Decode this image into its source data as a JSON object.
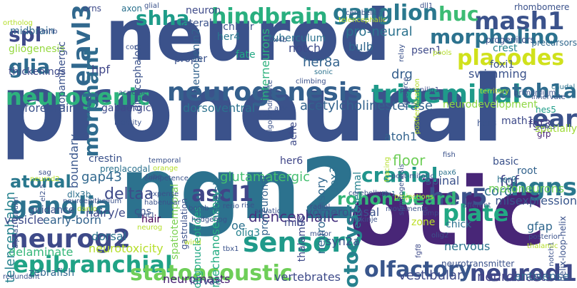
{
  "words": [
    {
      "text": "proneural",
      "color": "#3b528b"
    },
    {
      "text": "neurod",
      "color": "#3b528b"
    },
    {
      "text": "otic",
      "color": "#482677"
    },
    {
      "text": "ngn2",
      "color": "#2c728e"
    },
    {
      "text": "neurogenesis",
      "color": "#35608d"
    },
    {
      "text": "sensory",
      "color": "#1f9a8a"
    },
    {
      "text": "mash1",
      "color": "#3b528b"
    },
    {
      "text": "trigeminal",
      "color": "#1f9a8a"
    },
    {
      "text": "morpholino",
      "color": "#2c728e"
    },
    {
      "text": "epibranchial",
      "color": "#20a386"
    },
    {
      "text": "neurog2",
      "color": "#3e4a89"
    },
    {
      "text": "olfactory",
      "color": "#39568c"
    },
    {
      "text": "ganglia",
      "color": "#2c728e"
    },
    {
      "text": "placodes",
      "color": "#d0e11c"
    },
    {
      "text": "hindbrain",
      "color": "#29af7f"
    },
    {
      "text": "neurogenic",
      "color": "#2db27d"
    },
    {
      "text": "statoacoustic",
      "color": "#6ece58"
    },
    {
      "text": "elavl3",
      "color": "#31688e"
    },
    {
      "text": "her5",
      "color": "#3b528b"
    },
    {
      "text": "neurod1",
      "color": "#3e4a89"
    },
    {
      "text": "ganglion",
      "color": "#2a788e"
    },
    {
      "text": "spl",
      "color": "#3e4a89"
    },
    {
      "text": "ascl1",
      "color": "#404688"
    },
    {
      "text": "plate",
      "color": "#22a884"
    },
    {
      "text": "ngns",
      "color": "#2a788e"
    },
    {
      "text": "shha",
      "color": "#1e9c89"
    },
    {
      "text": "ear",
      "color": "#3b528b"
    },
    {
      "text": "cranial",
      "color": "#1f948c"
    },
    {
      "text": "otocyst",
      "color": "#26828e"
    },
    {
      "text": "morphant",
      "color": "#2f6c8e"
    },
    {
      "text": "glia",
      "color": "#2f6c8e"
    },
    {
      "text": "atoh1a",
      "color": "#2f6c8e"
    },
    {
      "text": "huc",
      "color": "#3dbc74"
    },
    {
      "text": "atonal",
      "color": "#2a788e"
    },
    {
      "text": "rohon-beard",
      "color": "#34b679"
    },
    {
      "text": "diencephalic",
      "color": "#46327e"
    },
    {
      "text": "deltaa",
      "color": "#3e4a89"
    },
    {
      "text": "drg",
      "color": "#355f8d"
    },
    {
      "text": "telencephalon",
      "color": "#26828e"
    },
    {
      "text": "gap43",
      "color": "#31688e"
    },
    {
      "text": "glutamatergic",
      "color": "#44bf70"
    },
    {
      "text": "acetylcholinesterase",
      "color": "#33638d"
    },
    {
      "text": "hair",
      "color": "#440154"
    },
    {
      "text": "neuromasts",
      "color": "#482173"
    },
    {
      "text": "dorsal",
      "color": "#2c728e"
    },
    {
      "text": "neurotoxicity",
      "color": "#b5de2b"
    },
    {
      "text": "mechanosensory",
      "color": "#25ac82"
    },
    {
      "text": "vestibular",
      "color": "#3e4a89"
    },
    {
      "text": "neuroblasts",
      "color": "#424086"
    },
    {
      "text": "zebrafish",
      "color": "#31688e"
    },
    {
      "text": "fgf",
      "color": "#404688"
    },
    {
      "text": "fgf3",
      "color": "#443a83"
    },
    {
      "text": "hes5",
      "color": "#1f9e89"
    },
    {
      "text": "her4",
      "color": "#2a788e"
    },
    {
      "text": "notch",
      "color": "#3e4a89"
    },
    {
      "text": "her8a",
      "color": "#33638d"
    },
    {
      "text": "bulb",
      "color": "#31688e"
    },
    {
      "text": "crest",
      "color": "#25838e"
    },
    {
      "text": "foxi1",
      "color": "#3b528b"
    },
    {
      "text": "forebrain",
      "color": "#3b528b"
    },
    {
      "text": "dorsoventral",
      "color": "#2c728e"
    },
    {
      "text": "neurodevelopment",
      "color": "#8fd744"
    },
    {
      "text": "math1",
      "color": "#3e4a89"
    },
    {
      "text": "atoh1",
      "color": "#33638d"
    },
    {
      "text": "her6",
      "color": "#404688"
    },
    {
      "text": "sox3",
      "color": "#2d708e"
    },
    {
      "text": "spinal",
      "color": "#3b528b"
    },
    {
      "text": "cord",
      "color": "#2d708e"
    },
    {
      "text": "floor",
      "color": "#6ece58"
    },
    {
      "text": "motoneurons",
      "color": "#6ccd5a"
    },
    {
      "text": "misexpression",
      "color": "#39568c"
    },
    {
      "text": "gfap",
      "color": "#31688e"
    },
    {
      "text": "root",
      "color": "#33638d"
    },
    {
      "text": "gfp",
      "color": "#482475"
    },
    {
      "text": "spatially",
      "color": "#a0da39"
    },
    {
      "text": "nervous",
      "color": "#2c728e"
    },
    {
      "text": "antisense",
      "color": "#31688e"
    },
    {
      "text": "vertebrates",
      "color": "#3e4a89"
    },
    {
      "text": "larvae",
      "color": "#3b528b"
    },
    {
      "text": "delaminate",
      "color": "#35b779"
    },
    {
      "text": "vesicle",
      "color": "#3e4a89"
    },
    {
      "text": "early-born",
      "color": "#33638d"
    },
    {
      "text": "hairy/e",
      "color": "#3e4a89"
    },
    {
      "text": "guidance",
      "color": "#3b528b"
    },
    {
      "text": "dlx3b",
      "color": "#2d708e"
    },
    {
      "text": "crestin",
      "color": "#3b528b"
    },
    {
      "text": "boundary",
      "color": "#39568c"
    },
    {
      "text": "gabaergic",
      "color": "#3e4a89"
    },
    {
      "text": "hpf",
      "color": "#404688"
    },
    {
      "text": "midbrain",
      "color": "#31688e"
    },
    {
      "text": "gliogenesis",
      "color": "#95d840"
    },
    {
      "text": "thickenings",
      "color": "#3e4a89"
    },
    {
      "text": "dopaminergic",
      "color": "#3b528b"
    },
    {
      "text": "diencephalon",
      "color": "#3b528b"
    },
    {
      "text": "neurogenin2",
      "color": "#33638d"
    },
    {
      "text": "interneurons",
      "color": "#2db27d"
    },
    {
      "text": "cochlear",
      "color": "#3b528b"
    },
    {
      "text": "tuberculum",
      "color": "#2c728e"
    },
    {
      "text": "pro-neural",
      "color": "#2c728e"
    },
    {
      "text": "lateral",
      "color": "#3b528b"
    },
    {
      "text": "axon",
      "color": "#2c728e"
    },
    {
      "text": "neuron",
      "color": "#3e4a89"
    },
    {
      "text": "proper",
      "color": "#3b528b"
    },
    {
      "text": "fate",
      "color": "#22a884"
    },
    {
      "text": "psen1",
      "color": "#3e4a89"
    },
    {
      "text": "swimming",
      "color": "#3b528b"
    },
    {
      "text": "olig3",
      "color": "#26828e"
    },
    {
      "text": "syn2a",
      "color": "#3b528b"
    },
    {
      "text": "oe",
      "color": "#2c728e"
    },
    {
      "text": "mib",
      "color": "#3e4a89"
    },
    {
      "text": "vomeronasal",
      "color": "#3b528b"
    },
    {
      "text": "cns",
      "color": "#3b528b"
    },
    {
      "text": "ventral",
      "color": "#2c728e"
    },
    {
      "text": "neurosensory",
      "color": "#31688e"
    },
    {
      "text": "proneuronal",
      "color": "#33638d"
    },
    {
      "text": "thalamus",
      "color": "#3e4a89"
    },
    {
      "text": "ectodermal",
      "color": "#26828e"
    },
    {
      "text": "ache",
      "color": "#3e4a89"
    },
    {
      "text": "her3",
      "color": "#3b528b"
    },
    {
      "text": "her9",
      "color": "#2c728e"
    },
    {
      "text": "basic",
      "color": "#3b528b"
    },
    {
      "text": "zone",
      "color": "#bddf26"
    },
    {
      "text": "chick",
      "color": "#2c728e"
    },
    {
      "text": "progenitors",
      "color": "#3b528b"
    },
    {
      "text": "precursors",
      "color": "#31688e"
    },
    {
      "text": "rhombomere",
      "color": "#3b528b"
    },
    {
      "text": "helix-loop-helix",
      "color": "#3b528b"
    },
    {
      "text": "neurotransmitter",
      "color": "#3b528b"
    },
    {
      "text": "spatiotemporal",
      "color": "#7ad151"
    },
    {
      "text": "oligonucleotides",
      "color": "#22a884"
    },
    {
      "text": "gastrulation",
      "color": "#3b528b"
    },
    {
      "text": "preplacodal",
      "color": "#2c728e"
    },
    {
      "text": "orns",
      "color": "#3e4a89"
    },
    {
      "text": "competence",
      "color": "#3b528b"
    },
    {
      "text": "corti",
      "color": "#3b528b"
    },
    {
      "text": "climbing",
      "color": "#3b528b"
    },
    {
      "text": "sonic",
      "color": "#2c728e"
    },
    {
      "text": "presenilin1",
      "color": "#3e4a89"
    },
    {
      "text": "caudal",
      "color": "#2c728e"
    },
    {
      "text": "primordium",
      "color": "#3b528b"
    },
    {
      "text": "fish",
      "color": "#3b528b"
    },
    {
      "text": "pax6",
      "color": "#2c728e"
    },
    {
      "text": "purkinje",
      "color": "#3b528b"
    },
    {
      "text": "radial",
      "color": "#3e4a89"
    },
    {
      "text": "aquatic",
      "color": "#3b528b"
    },
    {
      "text": "motor",
      "color": "#3b528b"
    },
    {
      "text": "cerebellum",
      "color": "#3b528b"
    },
    {
      "text": "six1",
      "color": "#2c728e"
    },
    {
      "text": "bmp",
      "color": "#3e4a89"
    },
    {
      "text": "afferent",
      "color": "#3b528b"
    },
    {
      "text": "movements",
      "color": "#3b528b"
    },
    {
      "text": "olig2",
      "color": "#3b528b"
    },
    {
      "text": "fgf8",
      "color": "#3e4a89"
    },
    {
      "text": "notch1",
      "color": "#3b528b"
    },
    {
      "text": "posterior",
      "color": "#3b528b"
    },
    {
      "text": "thalamic",
      "color": "#b5de2b"
    },
    {
      "text": "innervate",
      "color": "#3b528b"
    },
    {
      "text": "territory",
      "color": "#b5de2b"
    },
    {
      "text": "post-mitotic",
      "color": "#3b528b"
    },
    {
      "text": "projections",
      "color": "#b5de2b"
    },
    {
      "text": "somitogenesis",
      "color": "#3b528b"
    },
    {
      "text": "tracing",
      "color": "#b5de2b"
    },
    {
      "text": "cerebellar",
      "color": "#3b528b"
    },
    {
      "text": "glial",
      "color": "#3b528b"
    },
    {
      "text": "dll1",
      "color": "#3b528b"
    },
    {
      "text": "telencephalic",
      "color": "#b5de2b"
    },
    {
      "text": "dlx4b",
      "color": "#3b528b"
    },
    {
      "text": "relay",
      "color": "#3b528b"
    },
    {
      "text": "postfertilization",
      "color": "#b5de2b"
    },
    {
      "text": "resource",
      "color": "#3b528b"
    },
    {
      "text": "pools",
      "color": "#b5de2b"
    },
    {
      "text": "dlx3",
      "color": "#3b528b"
    },
    {
      "text": "ortholog",
      "color": "#b5de2b"
    },
    {
      "text": "mhb",
      "color": "#3b528b"
    },
    {
      "text": "oligodendrocyte",
      "color": "#3b528b"
    },
    {
      "text": "acridine",
      "color": "#3b528b"
    },
    {
      "text": "roof",
      "color": "#3b528b"
    },
    {
      "text": "alar",
      "color": "#3b528b"
    },
    {
      "text": "identity",
      "color": "#3b528b"
    },
    {
      "text": "sag",
      "color": "#3b528b"
    },
    {
      "text": "neurod2",
      "color": "#b5de2b"
    },
    {
      "text": "temporal",
      "color": "#3b528b"
    },
    {
      "text": "orange",
      "color": "#b5de2b"
    },
    {
      "text": "tube",
      "color": "#3b528b"
    },
    {
      "text": "expense",
      "color": "#3b528b"
    },
    {
      "text": "habenular",
      "color": "#3b528b"
    },
    {
      "text": "rerio",
      "color": "#3b528b"
    },
    {
      "text": "rise",
      "color": "#3b528b"
    },
    {
      "text": "alpha1-tubulin",
      "color": "#3b528b"
    },
    {
      "text": "el2.5",
      "color": "#3b528b"
    },
    {
      "text": "neuroepithelium",
      "color": "#3b528b"
    },
    {
      "text": "danio",
      "color": "#b5de2b"
    },
    {
      "text": "wnt1",
      "color": "#3b528b"
    },
    {
      "text": "bomb",
      "color": "#3b528b"
    },
    {
      "text": "hedgehog",
      "color": "#3b528b"
    },
    {
      "text": "neurog",
      "color": "#b5de2b"
    },
    {
      "text": "wind",
      "color": "#b5de2b"
    },
    {
      "text": "tbx1",
      "color": "#3b528b"
    },
    {
      "text": "redundant",
      "color": "#3b528b"
    }
  ]
}
